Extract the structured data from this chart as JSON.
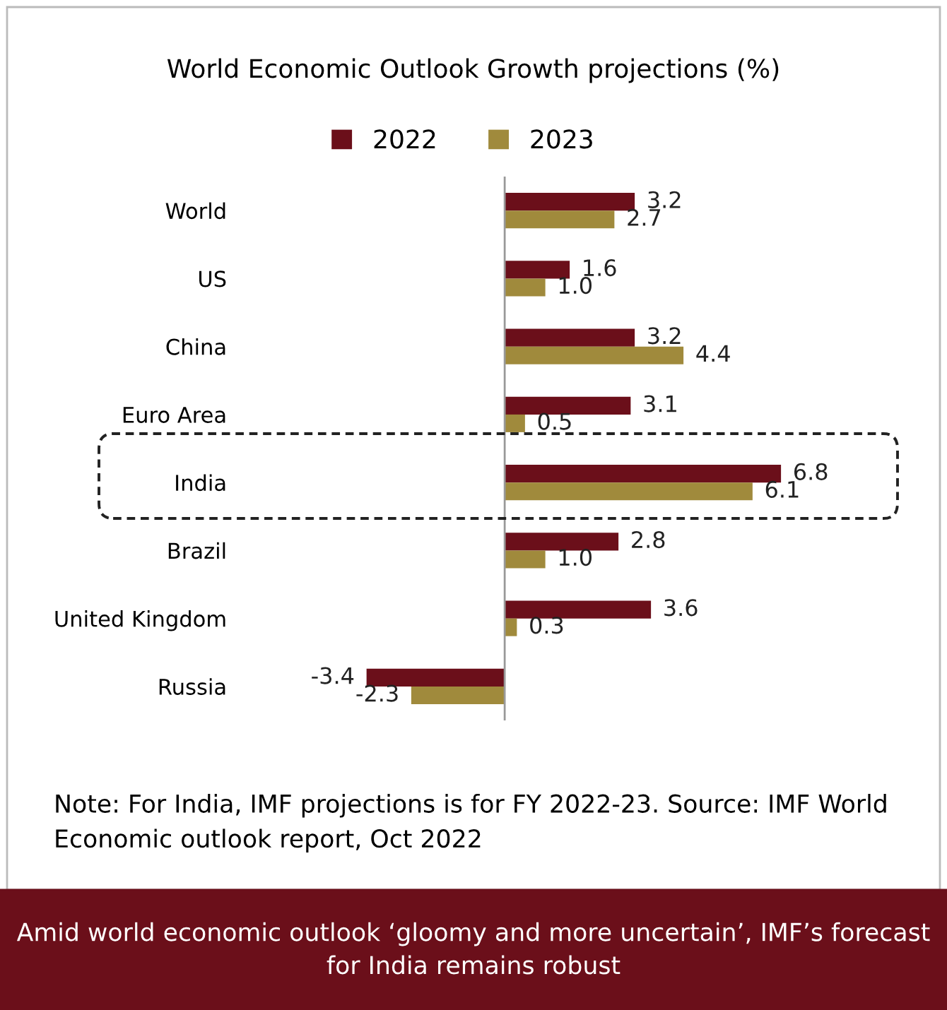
{
  "chart_data": {
    "type": "bar",
    "orientation": "horizontal",
    "title": "World Economic Outlook Growth projections (%)",
    "categories": [
      "World",
      "US",
      "China",
      "Euro Area",
      "India",
      "Brazil",
      "United Kingdom",
      "Russia"
    ],
    "series": [
      {
        "name": "2022",
        "color": "#6b0f1a",
        "values": [
          3.2,
          1.6,
          3.2,
          3.1,
          6.8,
          2.8,
          3.6,
          -3.4
        ],
        "value_labels": [
          "3.2",
          "1.6",
          "3.2",
          "3.1",
          "6.8",
          "2.8",
          "3.6",
          "-3.4"
        ]
      },
      {
        "name": "2023",
        "color": "#a08a3c",
        "values": [
          2.7,
          1.0,
          4.4,
          0.5,
          6.1,
          1.0,
          0.3,
          -2.3
        ],
        "value_labels": [
          "2.7",
          "1.0",
          "4.4",
          "0.5",
          "6.1",
          "1.0",
          "0.3",
          "-2.3"
        ]
      }
    ],
    "legend": "top",
    "grid": false,
    "annotations": [
      "Note: For India, IMF projections is for FY 2022-23. Source: IMF World Economic outlook report, Oct 2022",
      "Amid world economic outlook ‘gloomy and more uncertain’, IMF’s forecast for India remains robust"
    ]
  }
}
